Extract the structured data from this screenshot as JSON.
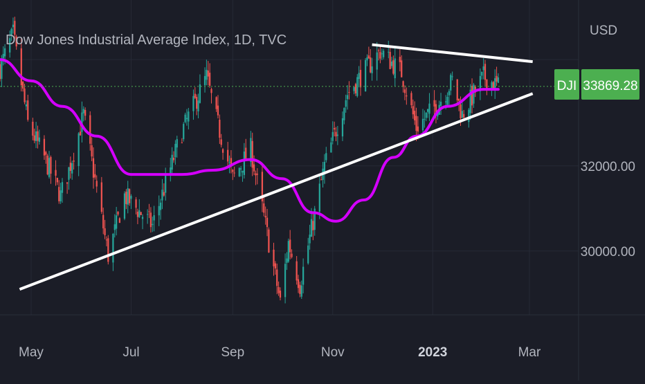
{
  "colors": {
    "background": "#1b1d27",
    "grid": "#262a36",
    "up": "#26a69a",
    "down": "#ef5350",
    "moving_average": "#d400ff",
    "trendline": "#ffffff",
    "price_badge": "#4caf50",
    "price_line": "#4caf50",
    "axis_text": "#b2b5be",
    "title_text": "#b2b5be"
  },
  "chart_data": {
    "type": "candlestick",
    "title": "Dow Jones Industrial Average Index, 1D, TVC",
    "currency_label": "USD",
    "symbol_label": "DJI",
    "last_price_label": "33869.28",
    "last_price": 33869.28,
    "y_ticks": [
      32000,
      30000
    ],
    "y_tick_labels": [
      "32000.00",
      "30000.00"
    ],
    "ylim": [
      28500,
      35900
    ],
    "x_ticks": [
      {
        "label": "May",
        "date": "2022-05-01",
        "bold": false
      },
      {
        "label": "Jul",
        "date": "2022-07-01",
        "bold": false
      },
      {
        "label": "Sep",
        "date": "2022-09-01",
        "bold": false
      },
      {
        "label": "Nov",
        "date": "2022-11-01",
        "bold": false
      },
      {
        "label": "2023",
        "date": "2023-01-01",
        "bold": true
      },
      {
        "label": "Mar",
        "date": "2023-03-01",
        "bold": false
      }
    ],
    "xlim": [
      "2022-04-12",
      "2023-03-31"
    ],
    "close_path": [
      [
        "2022-04-12",
        34300
      ],
      [
        "2022-04-20",
        35100
      ],
      [
        "2022-04-29",
        33000
      ],
      [
        "2022-05-09",
        32200
      ],
      [
        "2022-05-19",
        31300
      ],
      [
        "2022-05-24",
        31900
      ],
      [
        "2022-06-02",
        33200
      ],
      [
        "2022-06-17",
        29900
      ],
      [
        "2022-06-27",
        31300
      ],
      [
        "2022-07-14",
        30600
      ],
      [
        "2022-08-01",
        32800
      ],
      [
        "2022-08-16",
        34100
      ],
      [
        "2022-08-22",
        33100
      ],
      [
        "2022-09-01",
        31700
      ],
      [
        "2022-09-12",
        32400
      ],
      [
        "2022-09-30",
        28800
      ],
      [
        "2022-10-05",
        30200
      ],
      [
        "2022-10-12",
        29200
      ],
      [
        "2022-10-27",
        32000
      ],
      [
        "2022-11-10",
        33700
      ],
      [
        "2022-11-30",
        34700
      ],
      [
        "2022-12-13",
        34200
      ],
      [
        "2022-12-22",
        32900
      ],
      [
        "2023-01-05",
        33500
      ],
      [
        "2023-01-13",
        34000
      ],
      [
        "2023-01-19",
        33200
      ],
      [
        "2023-02-01",
        34100
      ],
      [
        "2023-02-10",
        33869
      ]
    ],
    "moving_average": [
      [
        "2022-04-12",
        34500
      ],
      [
        "2022-05-01",
        34000
      ],
      [
        "2022-05-20",
        33400
      ],
      [
        "2022-06-10",
        32700
      ],
      [
        "2022-07-01",
        31800
      ],
      [
        "2022-08-01",
        31800
      ],
      [
        "2022-08-20",
        31900
      ],
      [
        "2022-09-12",
        32150
      ],
      [
        "2022-10-01",
        31700
      ],
      [
        "2022-10-20",
        30900
      ],
      [
        "2022-11-03",
        30700
      ],
      [
        "2022-11-20",
        31200
      ],
      [
        "2022-12-08",
        32200
      ],
      [
        "2022-12-22",
        32700
      ],
      [
        "2023-01-10",
        33400
      ],
      [
        "2023-02-01",
        33800
      ],
      [
        "2023-02-10",
        33800
      ]
    ],
    "trendlines": [
      {
        "start": [
          "2022-04-24",
          29100
        ],
        "end": [
          "2023-03-03",
          33700
        ]
      },
      {
        "start": [
          "2022-11-25",
          34850
        ],
        "end": [
          "2023-03-03",
          34450
        ]
      }
    ],
    "grid": true
  }
}
